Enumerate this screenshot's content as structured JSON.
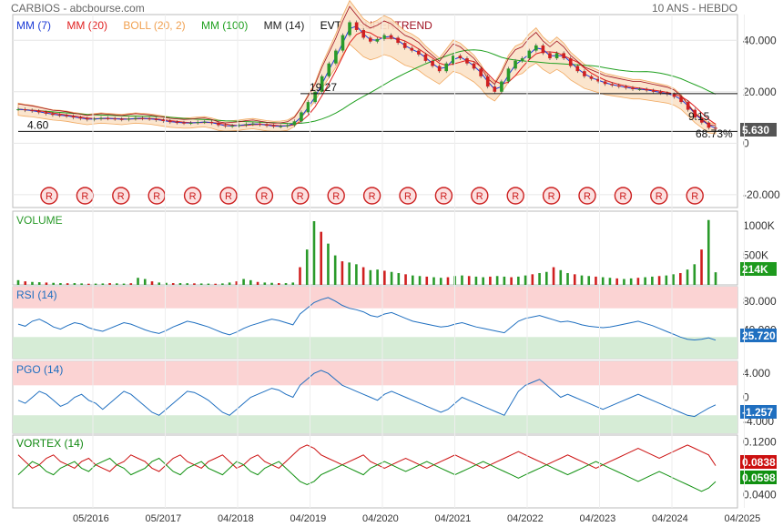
{
  "header": {
    "title": "CARBIOS - abcbourse.com",
    "period": "10 ANS - HEBDO"
  },
  "legend": [
    {
      "label": "MM (7)",
      "color": "#1c3bd6"
    },
    {
      "label": "MM (20)",
      "color": "#e02020"
    },
    {
      "label": "BOLL (20, 2)",
      "color": "#f0a050"
    },
    {
      "label": "MM (100)",
      "color": "#20a020"
    },
    {
      "label": "MM (14)",
      "color": "#222222"
    },
    {
      "label": "EVT",
      "color": "#000000"
    },
    {
      "label": "SUPERTREND",
      "color": "#a01020"
    }
  ],
  "colors": {
    "up": "#2a9a2a",
    "down": "#d02020",
    "rsi": "#1f6fc0",
    "last_price": "#555555",
    "neg_value": "#1f6fc0",
    "vortex_pos": "#cc1010",
    "vortex_neg": "#109010",
    "volume_badge": "#1e9a1e"
  },
  "chart_data": [
    {
      "type": "line",
      "title": "",
      "x_ticks": [
        "05/2016",
        "05/2017",
        "04/2018",
        "04/2019",
        "04/2020",
        "04/2021",
        "04/2022",
        "04/2023",
        "04/2024",
        "04/2025"
      ],
      "y_ticks": [
        "40.000",
        "20.000",
        "0",
        "-20.000"
      ],
      "ylim": [
        -25,
        50
      ],
      "levels": [
        {
          "label": "19.27",
          "value": 19.27
        },
        {
          "label": "4.60",
          "value": 4.6
        }
      ],
      "annotations": [
        "9.15",
        "68.73%"
      ],
      "last_value_label": "5.630",
      "dividend_markers": [
        "R",
        "R",
        "R",
        "R",
        "R",
        "R",
        "R",
        "R",
        "R",
        "R",
        "R",
        "R",
        "R",
        "R",
        "R",
        "R",
        "R",
        "R",
        "R"
      ],
      "series": [
        {
          "name": "price",
          "values": [
            13.2,
            12.8,
            12.5,
            12,
            11.5,
            11,
            10.8,
            10.5,
            10,
            9.6,
            9.2,
            9.5,
            9.8,
            9.6,
            9.4,
            9.2,
            9.5,
            9.8,
            9.6,
            9.4,
            9,
            8.6,
            8.2,
            8.0,
            7.8,
            7.9,
            8.2,
            8.3,
            7.8,
            7.0,
            6.6,
            6.8,
            7.0,
            7.4,
            7.6,
            7.2,
            6.8,
            6.5,
            6.6,
            7.0,
            8.5,
            12,
            16,
            20,
            26,
            31,
            36,
            42,
            47,
            44,
            41,
            39.5,
            40.5,
            42,
            41,
            39,
            37,
            36,
            34.5,
            32,
            30,
            28,
            31,
            34,
            33,
            31,
            29,
            26,
            22,
            20,
            24,
            29,
            32,
            33,
            36,
            38,
            35,
            33,
            35,
            33,
            30,
            28,
            26,
            25,
            24,
            23,
            22.5,
            22,
            21.5,
            21,
            21,
            20.5,
            20,
            19.5,
            19,
            18,
            16,
            13,
            10,
            8,
            6,
            5.63
          ]
        }
      ]
    },
    {
      "type": "bar",
      "title": "VOLUME",
      "y_ticks": [
        "1000K",
        "500K"
      ],
      "last_value_label": "214K",
      "ylim": [
        0,
        1250000
      ],
      "values": [
        80000,
        60000,
        50000,
        45000,
        40000,
        35000,
        30000,
        28000,
        30000,
        25000,
        20000,
        22000,
        24000,
        30000,
        26000,
        22000,
        28000,
        120000,
        100000,
        60000,
        40000,
        35000,
        30000,
        30000,
        28000,
        26000,
        24000,
        22000,
        20000,
        25000,
        40000,
        60000,
        100000,
        80000,
        50000,
        40000,
        35000,
        30000,
        30000,
        40000,
        300000,
        600000,
        1080000,
        900000,
        700000,
        500000,
        400000,
        380000,
        350000,
        300000,
        250000,
        260000,
        240000,
        220000,
        200000,
        180000,
        160000,
        150000,
        140000,
        130000,
        120000,
        130000,
        150000,
        160000,
        150000,
        140000,
        130000,
        140000,
        150000,
        140000,
        130000,
        140000,
        160000,
        180000,
        200000,
        220000,
        300000,
        250000,
        200000,
        180000,
        160000,
        150000,
        140000,
        130000,
        120000,
        110000,
        100000,
        110000,
        120000,
        130000,
        140000,
        150000,
        160000,
        180000,
        200000,
        260000,
        350000,
        600000,
        1100000,
        214000
      ]
    },
    {
      "type": "line",
      "title": "RSI (14)",
      "y_ticks": [
        "80.000",
        "40.000"
      ],
      "last_value_label": "25.720",
      "ylim": [
        0,
        100
      ],
      "bands": [
        70,
        30
      ],
      "values": [
        48,
        45,
        52,
        55,
        50,
        44,
        41,
        46,
        50,
        48,
        43,
        40,
        38,
        42,
        46,
        50,
        48,
        44,
        40,
        37,
        35,
        39,
        44,
        48,
        52,
        50,
        47,
        44,
        40,
        36,
        33,
        37,
        42,
        46,
        49,
        52,
        55,
        53,
        50,
        47,
        62,
        70,
        78,
        82,
        85,
        80,
        74,
        70,
        68,
        65,
        60,
        58,
        62,
        64,
        60,
        56,
        52,
        50,
        48,
        46,
        44,
        45,
        48,
        50,
        47,
        44,
        42,
        40,
        38,
        36,
        44,
        52,
        56,
        58,
        60,
        57,
        54,
        51,
        52,
        50,
        47,
        45,
        44,
        43,
        44,
        46,
        48,
        50,
        52,
        49,
        46,
        42,
        38,
        34,
        30,
        27,
        26,
        27,
        29,
        25.72
      ]
    },
    {
      "type": "line",
      "title": "PGO (14)",
      "y_ticks": [
        "4.000",
        "0",
        "-4.000"
      ],
      "last_value_label": "-1.257",
      "ylim": [
        -6,
        6
      ],
      "bands": [
        2,
        -3
      ],
      "values": [
        -0.5,
        -1,
        0,
        1,
        0.5,
        -0.5,
        -1.5,
        -1,
        0,
        0.5,
        -0.5,
        -1,
        -2,
        -1,
        0,
        1,
        0.5,
        -0.5,
        -1.5,
        -2.5,
        -3,
        -2,
        -1,
        0,
        1,
        0.8,
        0.2,
        -0.5,
        -1.5,
        -2.5,
        -3,
        -2,
        -1,
        0,
        0.5,
        1,
        1.5,
        1.2,
        0.5,
        0,
        2,
        3,
        4,
        4.5,
        4,
        3,
        2,
        1.5,
        1,
        0.5,
        0,
        -0.5,
        0.5,
        1,
        0.5,
        0,
        -0.5,
        -1,
        -1.5,
        -2,
        -2.5,
        -2,
        -1,
        0,
        -0.5,
        -1,
        -1.5,
        -2,
        -2.5,
        -3,
        -1,
        1,
        2,
        2.5,
        3,
        2,
        1,
        0,
        0.5,
        0,
        -0.5,
        -1,
        -1.5,
        -2,
        -1.5,
        -1,
        -0.5,
        0,
        0.5,
        0,
        -0.5,
        -1,
        -1.5,
        -2,
        -2.5,
        -3,
        -3.2,
        -2.5,
        -1.8,
        -1.257
      ]
    },
    {
      "type": "line",
      "title": "VORTEX (14)",
      "y_ticks": [
        "0.1200",
        "0.0400"
      ],
      "ylim": [
        0.02,
        0.13
      ],
      "series": [
        {
          "name": "VI+",
          "last_value_label": "0.0838",
          "values": [
            0.1,
            0.09,
            0.08,
            0.085,
            0.095,
            0.1,
            0.09,
            0.085,
            0.08,
            0.09,
            0.095,
            0.085,
            0.08,
            0.075,
            0.085,
            0.09,
            0.1,
            0.095,
            0.09,
            0.08,
            0.075,
            0.085,
            0.095,
            0.1,
            0.09,
            0.085,
            0.08,
            0.09,
            0.095,
            0.1,
            0.09,
            0.08,
            0.085,
            0.095,
            0.1,
            0.09,
            0.085,
            0.08,
            0.09,
            0.1,
            0.11,
            0.115,
            0.11,
            0.1,
            0.095,
            0.09,
            0.085,
            0.09,
            0.095,
            0.1,
            0.09,
            0.085,
            0.08,
            0.085,
            0.09,
            0.095,
            0.09,
            0.085,
            0.08,
            0.085,
            0.09,
            0.095,
            0.1,
            0.095,
            0.09,
            0.085,
            0.08,
            0.085,
            0.09,
            0.095,
            0.1,
            0.105,
            0.1,
            0.095,
            0.09,
            0.085,
            0.09,
            0.095,
            0.1,
            0.095,
            0.09,
            0.085,
            0.08,
            0.085,
            0.09,
            0.095,
            0.1,
            0.105,
            0.11,
            0.105,
            0.1,
            0.095,
            0.1,
            0.105,
            0.11,
            0.115,
            0.11,
            0.105,
            0.1,
            0.0838
          ]
        },
        {
          "name": "VI-",
          "last_value_label": "0.0598",
          "values": [
            0.07,
            0.08,
            0.09,
            0.085,
            0.075,
            0.07,
            0.08,
            0.085,
            0.09,
            0.08,
            0.075,
            0.085,
            0.09,
            0.095,
            0.085,
            0.08,
            0.07,
            0.075,
            0.08,
            0.09,
            0.095,
            0.085,
            0.075,
            0.07,
            0.08,
            0.085,
            0.09,
            0.08,
            0.075,
            0.07,
            0.08,
            0.09,
            0.085,
            0.075,
            0.07,
            0.08,
            0.085,
            0.09,
            0.08,
            0.07,
            0.06,
            0.055,
            0.06,
            0.07,
            0.075,
            0.08,
            0.085,
            0.08,
            0.075,
            0.07,
            0.08,
            0.085,
            0.09,
            0.085,
            0.08,
            0.075,
            0.08,
            0.085,
            0.09,
            0.085,
            0.08,
            0.075,
            0.07,
            0.075,
            0.08,
            0.085,
            0.09,
            0.085,
            0.08,
            0.075,
            0.07,
            0.065,
            0.07,
            0.075,
            0.08,
            0.085,
            0.08,
            0.075,
            0.07,
            0.075,
            0.08,
            0.085,
            0.09,
            0.085,
            0.08,
            0.075,
            0.07,
            0.065,
            0.06,
            0.065,
            0.07,
            0.075,
            0.07,
            0.065,
            0.06,
            0.055,
            0.05,
            0.045,
            0.05,
            0.0598
          ]
        }
      ]
    }
  ]
}
